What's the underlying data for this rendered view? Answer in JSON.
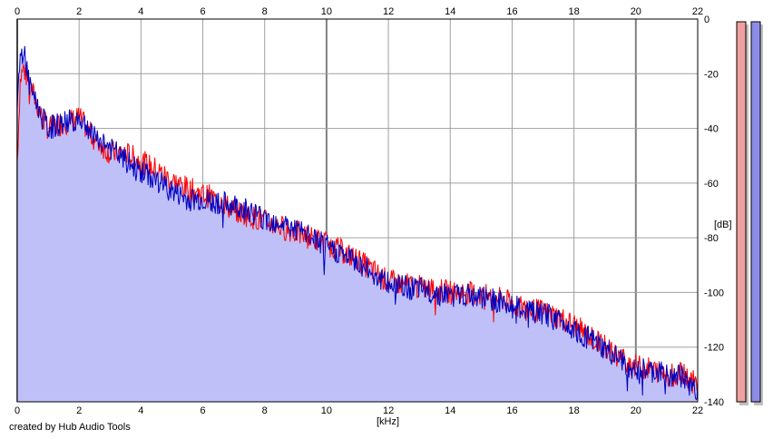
{
  "chart_data": {
    "type": "area",
    "xlabel": "[kHz]",
    "ylabel": "[dB]",
    "xlim": [
      0,
      22
    ],
    "ylim": [
      -140,
      0
    ],
    "x_ticks": [
      0,
      2,
      4,
      6,
      8,
      10,
      12,
      14,
      16,
      18,
      20,
      22
    ],
    "y_ticks": [
      0,
      -20,
      -40,
      -60,
      -80,
      -100,
      -120,
      -140
    ],
    "grid": true,
    "series": [
      {
        "color": "#ff0000",
        "x": [
          0,
          0.1,
          0.2,
          0.4,
          0.6,
          0.8,
          1.0,
          1.5,
          2.0,
          2.5,
          3.0,
          3.5,
          4.0,
          4.5,
          5.0,
          5.5,
          6.0,
          6.5,
          7.0,
          7.5,
          8.0,
          8.5,
          9.0,
          9.5,
          10.0,
          10.5,
          11.0,
          11.5,
          12.0,
          12.5,
          13.0,
          13.5,
          14.0,
          14.5,
          15.0,
          15.5,
          16.0,
          16.5,
          17.0,
          17.5,
          18.0,
          18.5,
          19.0,
          19.5,
          20.0,
          20.5,
          21.0,
          21.5,
          22.0
        ],
        "y": [
          -52,
          -22,
          -18,
          -24,
          -30,
          -36,
          -40,
          -38,
          -36,
          -44,
          -49,
          -49,
          -52,
          -55,
          -59,
          -62,
          -64,
          -66,
          -70,
          -72,
          -74,
          -76,
          -78,
          -80,
          -82,
          -85,
          -88,
          -92,
          -96,
          -97,
          -98,
          -99,
          -100,
          -100,
          -101,
          -102,
          -104,
          -106,
          -107,
          -109,
          -112,
          -116,
          -120,
          -124,
          -127,
          -128,
          -130,
          -130,
          -134
        ]
      },
      {
        "color": "#0000c0",
        "x": [
          0,
          0.1,
          0.2,
          0.4,
          0.6,
          0.8,
          1.0,
          1.5,
          2.0,
          2.5,
          3.0,
          3.5,
          4.0,
          4.5,
          5.0,
          5.5,
          6.0,
          6.5,
          7.0,
          7.5,
          8.0,
          8.5,
          9.0,
          9.5,
          10.0,
          10.5,
          11.0,
          11.5,
          12.0,
          12.5,
          13.0,
          13.5,
          14.0,
          14.5,
          15.0,
          15.5,
          16.0,
          16.5,
          17.0,
          17.5,
          18.0,
          18.5,
          19.0,
          19.5,
          20.0,
          20.5,
          21.0,
          21.5,
          22.0
        ],
        "y": [
          -30,
          -14,
          -12,
          -22,
          -30,
          -36,
          -40,
          -38,
          -36,
          -42,
          -47,
          -52,
          -56,
          -59,
          -63,
          -66,
          -66,
          -67,
          -68,
          -70,
          -73,
          -74,
          -77,
          -80,
          -83,
          -86,
          -89,
          -93,
          -97,
          -98,
          -99,
          -100,
          -101,
          -101,
          -102,
          -103,
          -105,
          -107,
          -108,
          -110,
          -113,
          -117,
          -121,
          -125,
          -128,
          -129,
          -130,
          -131,
          -136
        ]
      }
    ]
  },
  "meters": {
    "left_color": "#f0a0a0",
    "right_color": "#8c8ce6"
  },
  "credit": "created by Hub Audio Tools"
}
